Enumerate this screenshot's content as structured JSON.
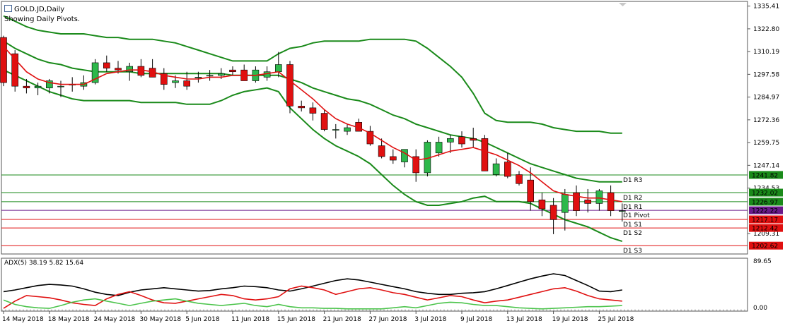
{
  "header": {
    "title": "GOLD.JD,Daily",
    "subtitle": "Showing Daily Pivots."
  },
  "chart_data": {
    "type": "candlestick",
    "colors": {
      "bull": "#2db84b",
      "bear": "#e01010",
      "ma": "#e01010",
      "bands": "#1a8a1a",
      "resistance": "#1a8a1a",
      "support": "#e01010",
      "pivot": "#6a1a8a",
      "adx": "#000000",
      "plus_di": "#e01010",
      "minus_di": "#4cc44c"
    },
    "price_axis": {
      "min": 1198,
      "max": 1338,
      "ticks": [
        "1335.41",
        "1322.80",
        "1310.19",
        "1297.58",
        "1284.97",
        "1272.36",
        "1259.75",
        "1247.14",
        "1234.53",
        "1209.31"
      ],
      "tick_values": [
        1335.41,
        1322.8,
        1310.19,
        1297.58,
        1284.97,
        1272.36,
        1259.75,
        1247.14,
        1234.53,
        1209.31
      ]
    },
    "x_labels": [
      {
        "i": 0,
        "label": "14 May 2018"
      },
      {
        "i": 4,
        "label": "18 May 2018"
      },
      {
        "i": 8,
        "label": "24 May 2018"
      },
      {
        "i": 12,
        "label": "30 May 2018"
      },
      {
        "i": 16,
        "label": "5 Jun 2018"
      },
      {
        "i": 20,
        "label": "11 Jun 2018"
      },
      {
        "i": 24,
        "label": "15 Jun 2018"
      },
      {
        "i": 28,
        "label": "21 Jun 2018"
      },
      {
        "i": 32,
        "label": "27 Jun 2018"
      },
      {
        "i": 36,
        "label": "3 Jul 2018"
      },
      {
        "i": 40,
        "label": "9 Jul 2018"
      },
      {
        "i": 44,
        "label": "13 Jul 2018"
      },
      {
        "i": 48,
        "label": "19 Jul 2018"
      },
      {
        "i": 52,
        "label": "25 Jul 2018"
      }
    ],
    "candles": [
      [
        1318,
        1319,
        1291,
        1293
      ],
      [
        1309,
        1311,
        1288,
        1291
      ],
      [
        1291,
        1295,
        1287,
        1290
      ],
      [
        1290,
        1293,
        1286,
        1291
      ],
      [
        1290,
        1295,
        1287,
        1294
      ],
      [
        1291,
        1294,
        1285,
        1291
      ],
      [
        1292,
        1296,
        1288,
        1292
      ],
      [
        1291,
        1297,
        1289,
        1293
      ],
      [
        1293,
        1306,
        1292,
        1304
      ],
      [
        1304,
        1308,
        1299,
        1301
      ],
      [
        1301,
        1305,
        1298,
        1300
      ],
      [
        1299,
        1304,
        1294,
        1302
      ],
      [
        1302,
        1306,
        1296,
        1297
      ],
      [
        1301,
        1306,
        1296,
        1296
      ],
      [
        1298,
        1301,
        1289,
        1292
      ],
      [
        1293,
        1297,
        1290,
        1294
      ],
      [
        1294,
        1299,
        1289,
        1291
      ],
      [
        1296,
        1299,
        1293,
        1296
      ],
      [
        1297,
        1300,
        1294,
        1297
      ],
      [
        1297,
        1301,
        1295,
        1298
      ],
      [
        1300,
        1302,
        1297,
        1299
      ],
      [
        1300,
        1303,
        1295,
        1294
      ],
      [
        1294,
        1302,
        1293,
        1300
      ],
      [
        1296,
        1302,
        1294,
        1299
      ],
      [
        1299,
        1310,
        1296,
        1303
      ],
      [
        1303,
        1305,
        1276,
        1280
      ],
      [
        1280,
        1283,
        1277,
        1279
      ],
      [
        1279,
        1282,
        1272,
        1276
      ],
      [
        1276,
        1278,
        1266,
        1267
      ],
      [
        1267,
        1270,
        1262,
        1267
      ],
      [
        1266,
        1270,
        1264,
        1268
      ],
      [
        1271,
        1273,
        1266,
        1266
      ],
      [
        1266,
        1269,
        1258,
        1259
      ],
      [
        1258,
        1262,
        1251,
        1252
      ],
      [
        1252,
        1256,
        1248,
        1250
      ],
      [
        1249,
        1256,
        1246,
        1256
      ],
      [
        1252,
        1256,
        1238,
        1243
      ],
      [
        1243,
        1261,
        1241,
        1260
      ],
      [
        1254,
        1263,
        1252,
        1260
      ],
      [
        1260,
        1264,
        1254,
        1262
      ],
      [
        1263,
        1266,
        1257,
        1259
      ],
      [
        1262,
        1268,
        1257,
        1261
      ],
      [
        1262,
        1264,
        1244,
        1244
      ],
      [
        1242,
        1251,
        1241,
        1248
      ],
      [
        1249,
        1254,
        1240,
        1241
      ],
      [
        1242,
        1244,
        1236,
        1237
      ],
      [
        1239,
        1246,
        1222,
        1227
      ],
      [
        1228,
        1232,
        1219,
        1223
      ],
      [
        1225,
        1229,
        1209,
        1217
      ],
      [
        1221,
        1234,
        1211,
        1231
      ],
      [
        1232,
        1236,
        1219,
        1222
      ],
      [
        1228,
        1234,
        1221,
        1226
      ],
      [
        1226,
        1234,
        1222,
        1233
      ],
      [
        1232,
        1236,
        1219,
        1222
      ],
      [
        1222,
        1226,
        1216,
        1222
      ]
    ],
    "ma": [
      1313,
      1306,
      1299,
      1295,
      1293,
      1292,
      1292,
      1292,
      1295,
      1298,
      1299,
      1300,
      1300,
      1299,
      1297,
      1296,
      1295,
      1295,
      1296,
      1296,
      1297,
      1297,
      1297,
      1298,
      1299,
      1294,
      1289,
      1284,
      1278,
      1273,
      1270,
      1268,
      1265,
      1261,
      1257,
      1254,
      1250,
      1251,
      1253,
      1255,
      1256,
      1257,
      1255,
      1253,
      1250,
      1247,
      1243,
      1238,
      1233,
      1231,
      1230,
      1229,
      1229,
      1228,
      1227
    ],
    "bb_upper": [
      1330,
      1327,
      1324,
      1322,
      1321,
      1320,
      1320,
      1320,
      1319,
      1318,
      1318,
      1317,
      1317,
      1317,
      1316,
      1315,
      1313,
      1311,
      1309,
      1307,
      1305,
      1305,
      1305,
      1305,
      1309,
      1312,
      1313,
      1315,
      1316,
      1316,
      1316,
      1316,
      1317,
      1317,
      1317,
      1317,
      1316,
      1312,
      1307,
      1302,
      1296,
      1287,
      1276,
      1272,
      1271,
      1271,
      1271,
      1270,
      1268,
      1267,
      1266,
      1266,
      1266,
      1265,
      1265
    ],
    "bb_mid": [
      1316,
      1312,
      1309,
      1306,
      1304,
      1303,
      1301,
      1300,
      1299,
      1299,
      1299,
      1299,
      1298,
      1298,
      1298,
      1298,
      1298,
      1298,
      1298,
      1298,
      1297,
      1297,
      1297,
      1297,
      1297,
      1295,
      1293,
      1290,
      1288,
      1286,
      1284,
      1283,
      1281,
      1278,
      1275,
      1273,
      1270,
      1268,
      1266,
      1264,
      1263,
      1262,
      1260,
      1257,
      1254,
      1251,
      1248,
      1246,
      1244,
      1242,
      1240,
      1239,
      1238,
      1238,
      1238
    ],
    "bb_lower": [
      1300,
      1297,
      1294,
      1291,
      1288,
      1286,
      1284,
      1283,
      1283,
      1283,
      1283,
      1283,
      1282,
      1282,
      1282,
      1282,
      1281,
      1281,
      1281,
      1283,
      1286,
      1288,
      1289,
      1290,
      1288,
      1279,
      1273,
      1267,
      1262,
      1258,
      1255,
      1252,
      1248,
      1242,
      1236,
      1231,
      1227,
      1225,
      1225,
      1226,
      1227,
      1229,
      1230,
      1227,
      1227,
      1227,
      1226,
      1223,
      1220,
      1217,
      1215,
      1213,
      1210,
      1207,
      1205
    ],
    "pivots": [
      {
        "name": "D1 R3",
        "value": 1241.82,
        "label": "1241.82",
        "kind": "resistance"
      },
      {
        "name": "D1 R2",
        "value": 1232.02,
        "label": "1232.02",
        "kind": "resistance"
      },
      {
        "name": "D1 R1",
        "value": 1226.97,
        "label": "1226.97",
        "kind": "resistance"
      },
      {
        "name": "D1 Pivot",
        "value": 1222.22,
        "label": "1222.22",
        "kind": "pivot"
      },
      {
        "name": "D1 S1",
        "value": 1217.17,
        "label": "1217.17",
        "kind": "support"
      },
      {
        "name": "D1 S2",
        "value": 1212.42,
        "label": "1212.42",
        "kind": "support"
      },
      {
        "name": "D1 S3",
        "value": 1202.62,
        "label": "1202.62",
        "kind": "support"
      }
    ],
    "adx": {
      "title": "ADX(5) 38.19 5.82 15.64",
      "min": 0,
      "max": 95,
      "tick_top": "89.65",
      "tick_bottom": "0.00",
      "adx": [
        35,
        38,
        42,
        46,
        48,
        47,
        45,
        40,
        34,
        30,
        28,
        34,
        38,
        40,
        42,
        40,
        38,
        36,
        37,
        40,
        42,
        45,
        44,
        42,
        38,
        36,
        40,
        45,
        50,
        55,
        58,
        56,
        52,
        48,
        44,
        40,
        35,
        32,
        30,
        30,
        32,
        33,
        35,
        40,
        46,
        52,
        58,
        63,
        67,
        64,
        55,
        46,
        36,
        35,
        38
      ],
      "plus_di": [
        5,
        18,
        28,
        26,
        24,
        20,
        15,
        12,
        10,
        22,
        30,
        35,
        28,
        20,
        15,
        14,
        18,
        22,
        26,
        30,
        28,
        22,
        20,
        22,
        26,
        40,
        45,
        42,
        38,
        30,
        35,
        40,
        42,
        38,
        33,
        30,
        25,
        20,
        24,
        28,
        26,
        20,
        15,
        18,
        20,
        25,
        30,
        35,
        40,
        42,
        36,
        28,
        22,
        20,
        18
      ],
      "minus_di": [
        20,
        12,
        8,
        6,
        5,
        10,
        16,
        20,
        22,
        18,
        14,
        10,
        14,
        18,
        20,
        22,
        18,
        14,
        12,
        10,
        12,
        14,
        10,
        8,
        12,
        8,
        6,
        6,
        5,
        5,
        4,
        4,
        4,
        4,
        6,
        8,
        6,
        10,
        14,
        16,
        15,
        12,
        10,
        10,
        8,
        6,
        5,
        4,
        5,
        6,
        7,
        8,
        8,
        9,
        10
      ]
    }
  }
}
